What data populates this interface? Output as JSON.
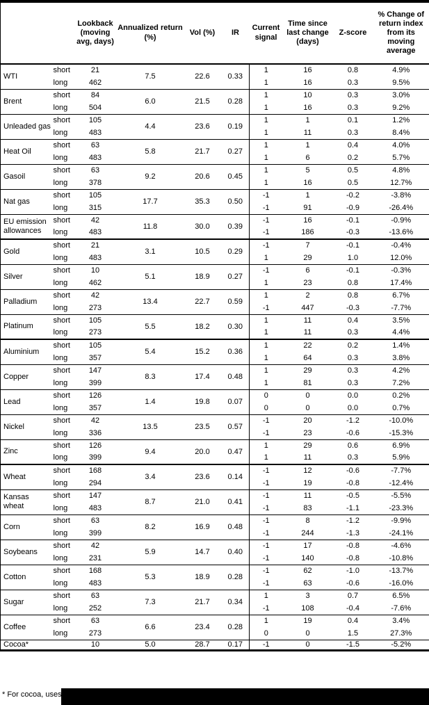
{
  "table": {
    "header": {
      "columns": [
        {
          "key": "name",
          "label": ""
        },
        {
          "key": "label",
          "label": ""
        },
        {
          "key": "lookback",
          "label": "Lookback (moving avg, days)"
        },
        {
          "key": "annualized",
          "label": "Annualized return (%)"
        },
        {
          "key": "vol",
          "label": "Vol (%)"
        },
        {
          "key": "ir",
          "label": "IR"
        },
        {
          "key": "signal",
          "label": "Current signal"
        },
        {
          "key": "time_since",
          "label": "Time since last change (days)"
        },
        {
          "key": "z_score",
          "label": "Z-score"
        },
        {
          "key": "pct_change",
          "label": "% Change of return index from its moving average"
        }
      ]
    },
    "commodities": [
      {
        "name": "WTI",
        "section_start": false,
        "annualized": "7.5",
        "vol": "22.6",
        "ir": "0.33",
        "subrows": [
          {
            "label": "short",
            "lookback": "21",
            "signal": "1",
            "time_since": "16",
            "z_score": "0.8",
            "pct_change": "4.9%"
          },
          {
            "label": "long",
            "lookback": "462",
            "signal": "1",
            "time_since": "16",
            "z_score": "0.3",
            "pct_change": "9.5%"
          }
        ]
      },
      {
        "name": "Brent",
        "section_start": false,
        "annualized": "6.0",
        "vol": "21.5",
        "ir": "0.28",
        "subrows": [
          {
            "label": "short",
            "lookback": "84",
            "signal": "1",
            "time_since": "10",
            "z_score": "0.3",
            "pct_change": "3.0%"
          },
          {
            "label": "long",
            "lookback": "504",
            "signal": "1",
            "time_since": "16",
            "z_score": "0.3",
            "pct_change": "9.2%"
          }
        ]
      },
      {
        "name": "Unleaded gas",
        "section_start": false,
        "annualized": "4.4",
        "vol": "23.6",
        "ir": "0.19",
        "subrows": [
          {
            "label": "short",
            "lookback": "105",
            "signal": "1",
            "time_since": "1",
            "z_score": "0.1",
            "pct_change": "1.2%"
          },
          {
            "label": "long",
            "lookback": "483",
            "signal": "1",
            "time_since": "11",
            "z_score": "0.3",
            "pct_change": "8.4%"
          }
        ]
      },
      {
        "name": "Heat Oil",
        "section_start": false,
        "annualized": "5.8",
        "vol": "21.7",
        "ir": "0.27",
        "subrows": [
          {
            "label": "short",
            "lookback": "63",
            "signal": "1",
            "time_since": "1",
            "z_score": "0.4",
            "pct_change": "4.0%"
          },
          {
            "label": "long",
            "lookback": "483",
            "signal": "1",
            "time_since": "6",
            "z_score": "0.2",
            "pct_change": "5.7%"
          }
        ]
      },
      {
        "name": "Gasoil",
        "section_start": false,
        "annualized": "9.2",
        "vol": "20.6",
        "ir": "0.45",
        "subrows": [
          {
            "label": "short",
            "lookback": "63",
            "signal": "1",
            "time_since": "5",
            "z_score": "0.5",
            "pct_change": "4.8%"
          },
          {
            "label": "long",
            "lookback": "378",
            "signal": "1",
            "time_since": "16",
            "z_score": "0.5",
            "pct_change": "12.7%"
          }
        ]
      },
      {
        "name": "Nat gas",
        "section_start": false,
        "annualized": "17.7",
        "vol": "35.3",
        "ir": "0.50",
        "subrows": [
          {
            "label": "short",
            "lookback": "105",
            "signal": "-1",
            "time_since": "1",
            "z_score": "-0.2",
            "pct_change": "-3.8%"
          },
          {
            "label": "long",
            "lookback": "315",
            "signal": "-1",
            "time_since": "91",
            "z_score": "-0.9",
            "pct_change": "-26.4%"
          }
        ]
      },
      {
        "name": "EU emission allowances",
        "section_start": false,
        "annualized": "11.8",
        "vol": "30.0",
        "ir": "0.39",
        "subrows": [
          {
            "label": "short",
            "lookback": "42",
            "signal": "-1",
            "time_since": "16",
            "z_score": "-0.1",
            "pct_change": "-0.9%"
          },
          {
            "label": "long",
            "lookback": "483",
            "signal": "-1",
            "time_since": "186",
            "z_score": "-0.3",
            "pct_change": "-13.6%"
          }
        ]
      },
      {
        "name": "Gold",
        "section_start": true,
        "annualized": "3.1",
        "vol": "10.5",
        "ir": "0.29",
        "subrows": [
          {
            "label": "short",
            "lookback": "21",
            "signal": "-1",
            "time_since": "7",
            "z_score": "-0.1",
            "pct_change": "-0.4%"
          },
          {
            "label": "long",
            "lookback": "483",
            "signal": "1",
            "time_since": "29",
            "z_score": "1.0",
            "pct_change": "12.0%"
          }
        ]
      },
      {
        "name": "Silver",
        "section_start": false,
        "annualized": "5.1",
        "vol": "18.9",
        "ir": "0.27",
        "subrows": [
          {
            "label": "short",
            "lookback": "10",
            "signal": "-1",
            "time_since": "6",
            "z_score": "-0.1",
            "pct_change": "-0.3%"
          },
          {
            "label": "long",
            "lookback": "462",
            "signal": "1",
            "time_since": "23",
            "z_score": "0.8",
            "pct_change": "17.4%"
          }
        ]
      },
      {
        "name": "Palladium",
        "section_start": false,
        "annualized": "13.4",
        "vol": "22.7",
        "ir": "0.59",
        "subrows": [
          {
            "label": "short",
            "lookback": "42",
            "signal": "1",
            "time_since": "2",
            "z_score": "0.8",
            "pct_change": "6.7%"
          },
          {
            "label": "long",
            "lookback": "273",
            "signal": "-1",
            "time_since": "447",
            "z_score": "-0.3",
            "pct_change": "-7.7%"
          }
        ]
      },
      {
        "name": "Platinum",
        "section_start": false,
        "annualized": "5.5",
        "vol": "18.2",
        "ir": "0.30",
        "subrows": [
          {
            "label": "short",
            "lookback": "105",
            "signal": "1",
            "time_since": "11",
            "z_score": "0.4",
            "pct_change": "3.5%"
          },
          {
            "label": "long",
            "lookback": "273",
            "signal": "1",
            "time_since": "11",
            "z_score": "0.3",
            "pct_change": "4.4%"
          }
        ]
      },
      {
        "name": "Aluminium",
        "section_start": true,
        "annualized": "5.4",
        "vol": "15.2",
        "ir": "0.36",
        "subrows": [
          {
            "label": "short",
            "lookback": "105",
            "signal": "1",
            "time_since": "22",
            "z_score": "0.2",
            "pct_change": "1.4%"
          },
          {
            "label": "long",
            "lookback": "357",
            "signal": "1",
            "time_since": "64",
            "z_score": "0.3",
            "pct_change": "3.8%"
          }
        ]
      },
      {
        "name": "Copper",
        "section_start": false,
        "annualized": "8.3",
        "vol": "17.4",
        "ir": "0.48",
        "subrows": [
          {
            "label": "short",
            "lookback": "147",
            "signal": "1",
            "time_since": "29",
            "z_score": "0.3",
            "pct_change": "4.2%"
          },
          {
            "label": "long",
            "lookback": "399",
            "signal": "1",
            "time_since": "81",
            "z_score": "0.3",
            "pct_change": "7.2%"
          }
        ]
      },
      {
        "name": "Lead",
        "section_start": false,
        "annualized": "1.4",
        "vol": "19.8",
        "ir": "0.07",
        "subrows": [
          {
            "label": "short",
            "lookback": "126",
            "signal": "0",
            "time_since": "0",
            "z_score": "0.0",
            "pct_change": "0.2%"
          },
          {
            "label": "long",
            "lookback": "357",
            "signal": "0",
            "time_since": "0",
            "z_score": "0.0",
            "pct_change": "0.7%"
          }
        ]
      },
      {
        "name": "Nickel",
        "section_start": false,
        "annualized": "13.5",
        "vol": "23.5",
        "ir": "0.57",
        "subrows": [
          {
            "label": "short",
            "lookback": "42",
            "signal": "-1",
            "time_since": "20",
            "z_score": "-1.2",
            "pct_change": "-10.0%"
          },
          {
            "label": "long",
            "lookback": "336",
            "signal": "-1",
            "time_since": "23",
            "z_score": "-0.6",
            "pct_change": "-15.3%"
          }
        ]
      },
      {
        "name": "Zinc",
        "section_start": false,
        "annualized": "9.4",
        "vol": "20.0",
        "ir": "0.47",
        "subrows": [
          {
            "label": "short",
            "lookback": "126",
            "signal": "1",
            "time_since": "29",
            "z_score": "0.6",
            "pct_change": "6.9%"
          },
          {
            "label": "long",
            "lookback": "399",
            "signal": "1",
            "time_since": "11",
            "z_score": "0.3",
            "pct_change": "5.9%"
          }
        ]
      },
      {
        "name": "Wheat",
        "section_start": true,
        "annualized": "3.4",
        "vol": "23.6",
        "ir": "0.14",
        "subrows": [
          {
            "label": "short",
            "lookback": "168",
            "signal": "-1",
            "time_since": "12",
            "z_score": "-0.6",
            "pct_change": "-7.7%"
          },
          {
            "label": "long",
            "lookback": "294",
            "signal": "-1",
            "time_since": "19",
            "z_score": "-0.8",
            "pct_change": "-12.4%"
          }
        ]
      },
      {
        "name": "Kansas wheat",
        "section_start": false,
        "annualized": "8.7",
        "vol": "21.0",
        "ir": "0.41",
        "subrows": [
          {
            "label": "short",
            "lookback": "147",
            "signal": "-1",
            "time_since": "11",
            "z_score": "-0.5",
            "pct_change": "-5.5%"
          },
          {
            "label": "long",
            "lookback": "483",
            "signal": "-1",
            "time_since": "83",
            "z_score": "-1.1",
            "pct_change": "-23.3%"
          }
        ]
      },
      {
        "name": "Corn",
        "section_start": false,
        "annualized": "8.2",
        "vol": "16.9",
        "ir": "0.48",
        "subrows": [
          {
            "label": "short",
            "lookback": "63",
            "signal": "-1",
            "time_since": "8",
            "z_score": "-1.2",
            "pct_change": "-9.9%"
          },
          {
            "label": "long",
            "lookback": "399",
            "signal": "-1",
            "time_since": "244",
            "z_score": "-1.3",
            "pct_change": "-24.1%"
          }
        ]
      },
      {
        "name": "Soybeans",
        "section_start": false,
        "annualized": "5.9",
        "vol": "14.7",
        "ir": "0.40",
        "subrows": [
          {
            "label": "short",
            "lookback": "42",
            "signal": "-1",
            "time_since": "17",
            "z_score": "-0.8",
            "pct_change": "-4.6%"
          },
          {
            "label": "long",
            "lookback": "231",
            "signal": "-1",
            "time_since": "140",
            "z_score": "-0.8",
            "pct_change": "-10.8%"
          }
        ]
      },
      {
        "name": "Cotton",
        "section_start": false,
        "annualized": "5.3",
        "vol": "18.9",
        "ir": "0.28",
        "subrows": [
          {
            "label": "short",
            "lookback": "168",
            "signal": "-1",
            "time_since": "62",
            "z_score": "-1.0",
            "pct_change": "-13.7%"
          },
          {
            "label": "long",
            "lookback": "483",
            "signal": "-1",
            "time_since": "63",
            "z_score": "-0.6",
            "pct_change": "-16.0%"
          }
        ]
      },
      {
        "name": "Sugar",
        "section_start": false,
        "annualized": "7.3",
        "vol": "21.7",
        "ir": "0.34",
        "subrows": [
          {
            "label": "short",
            "lookback": "63",
            "signal": "1",
            "time_since": "3",
            "z_score": "0.7",
            "pct_change": "6.5%"
          },
          {
            "label": "long",
            "lookback": "252",
            "signal": "-1",
            "time_since": "108",
            "z_score": "-0.4",
            "pct_change": "-7.6%"
          }
        ]
      },
      {
        "name": "Coffee",
        "section_start": false,
        "annualized": "6.6",
        "vol": "23.4",
        "ir": "0.28",
        "subrows": [
          {
            "label": "short",
            "lookback": "63",
            "signal": "1",
            "time_since": "19",
            "z_score": "0.4",
            "pct_change": "3.4%"
          },
          {
            "label": "long",
            "lookback": "273",
            "signal": "0",
            "time_since": "0",
            "z_score": "1.5",
            "pct_change": "27.3%"
          }
        ]
      },
      {
        "name": "Cocoa*",
        "section_start": false,
        "single_row": true,
        "annualized": "5.0",
        "vol": "28.7",
        "ir": "0.17",
        "subrows": [
          {
            "label": "",
            "lookback": "10",
            "signal": "-1",
            "time_since": "0",
            "z_score": "-1.5",
            "pct_change": "-5.2%"
          }
        ]
      }
    ]
  },
  "footnote": {
    "text": "* For cocoa, uses o"
  },
  "colors": {
    "background": "#ffffff",
    "border": "#000000",
    "text": "#000000",
    "redaction": "#000000"
  }
}
